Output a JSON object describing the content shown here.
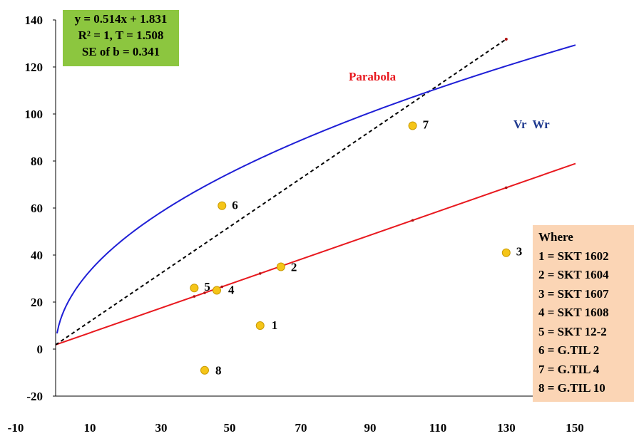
{
  "chart_data": {
    "type": "scatter",
    "xlim": [
      -10,
      150
    ],
    "ylim": [
      -20,
      140
    ],
    "x_ticks": [
      -10,
      10,
      30,
      50,
      70,
      90,
      110,
      130,
      150
    ],
    "y_ticks": [
      -20,
      0,
      20,
      40,
      60,
      80,
      100,
      120,
      140
    ],
    "points": [
      {
        "label": "1",
        "x": 59,
        "y": 10
      },
      {
        "label": "2",
        "x": 65,
        "y": 35
      },
      {
        "label": "3",
        "x": 130,
        "y": 41
      },
      {
        "label": "4",
        "x": 46.5,
        "y": 25
      },
      {
        "label": "5",
        "x": 40,
        "y": 26
      },
      {
        "label": "6",
        "x": 48,
        "y": 61
      },
      {
        "label": "7",
        "x": 103,
        "y": 95
      },
      {
        "label": "8",
        "x": 43,
        "y": -9
      }
    ],
    "regression_line": {
      "slope": 0.514,
      "intercept": 1.831,
      "x_range": [
        0,
        150
      ],
      "color": "#e8191f"
    },
    "unit_line": {
      "slope": 1.0,
      "intercept": 1.831,
      "x_range": [
        0,
        130
      ],
      "color": "#000000",
      "style": "dashed"
    },
    "parabola": {
      "name": "Vr  Wr",
      "coef": 10.56,
      "x_range": [
        0.4,
        150
      ],
      "color": "#1f1fd6"
    },
    "equation_box": {
      "line1": "y = 0.514x + 1.831",
      "line2": "R² = 1, T = 1.508",
      "line3": "SE of b = 0.341"
    },
    "curve_label_parabola": "Parabola",
    "curve_label_vrwr": "Vr  Wr",
    "legend": {
      "title": "Where",
      "entries": [
        "1 = SKT 1602",
        "2 = SKT 1604",
        "3 = SKT 1607",
        "4 = SKT 1608",
        "5 = SKT 12-2",
        "6 = G.TIL 2",
        "7 = G.TIL 4",
        "8 = G.TIL 10"
      ]
    },
    "colors": {
      "point_fill": "#f5c518",
      "point_stroke": "#c99a00",
      "eq_bg": "#8cc63f",
      "legend_bg": "#fbd5b5"
    }
  }
}
